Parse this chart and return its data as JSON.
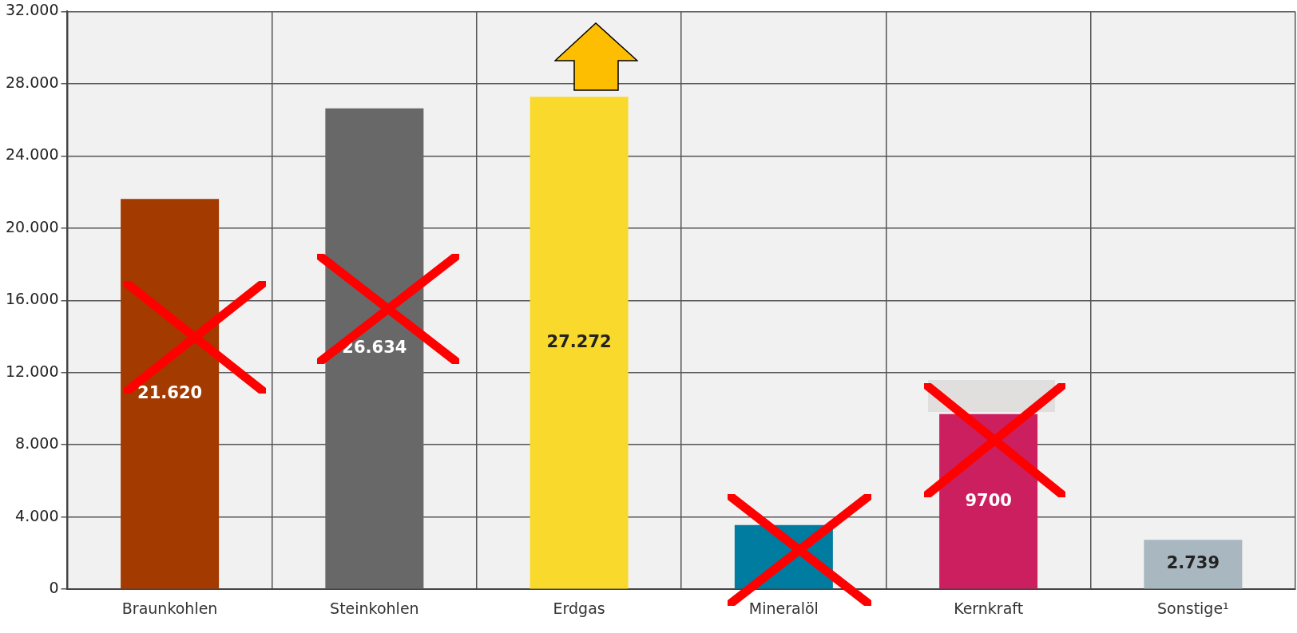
{
  "chart_data": {
    "type": "bar",
    "categories": [
      "Braunkohlen",
      "Steinkohlen",
      "Erdgas",
      "Mineralöl",
      "Kernkraft",
      "Sonstige¹"
    ],
    "values": [
      21620,
      26634,
      27272,
      3560,
      9700,
      2739
    ],
    "colors": [
      "#a33a00",
      "#686868",
      "#f9d92b",
      "#007ca0",
      "#cc1f5f",
      "#a9b8c0"
    ],
    "value_labels": [
      "21.620",
      "26.634",
      "27.272",
      null,
      "9700",
      "2.739"
    ],
    "ylim": [
      0,
      32000
    ],
    "yticks": [
      0,
      {
        "value": 4000,
        "label": "4.000"
      },
      {
        "value": 8000,
        "label": "8.000"
      },
      {
        "value": 12000,
        "label": "12.000"
      },
      {
        "value": 16000,
        "label": "16.000"
      },
      {
        "value": 20000,
        "label": "20.000"
      },
      {
        "value": 24000,
        "label": "24.000"
      },
      {
        "value": 28000,
        "label": "28.000"
      },
      {
        "value": 32000,
        "label": "32.000"
      }
    ],
    "grid": true,
    "legend": false
  }
}
